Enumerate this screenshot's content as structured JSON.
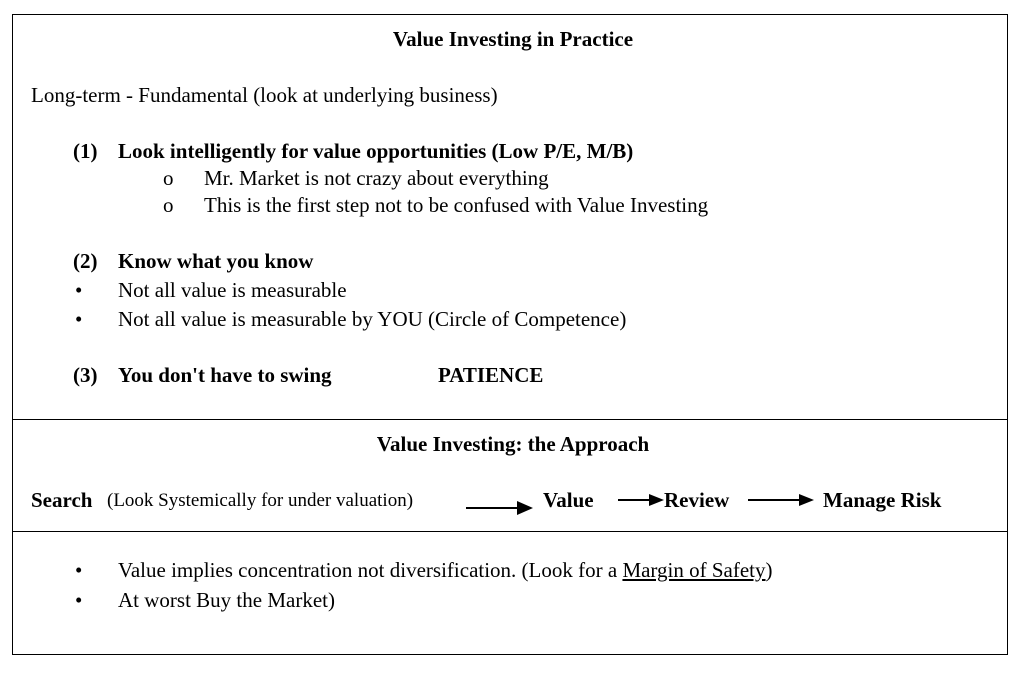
{
  "section1": {
    "title": "Value Investing in Practice",
    "intro": "Long-term - Fundamental (look at underlying business)",
    "point1": {
      "number": "(1)",
      "heading": "Look intelligently for value opportunities (Low P/E, M/B)",
      "bullet_marker": "o",
      "bullets": [
        "Mr. Market is not crazy about everything",
        "This is the first step not to be confused with Value Investing"
      ]
    },
    "point2": {
      "number": "(2)",
      "heading": "Know what you know",
      "bullet_marker": "•",
      "bullets": [
        "Not all value is measurable",
        "Not all value is measurable by YOU  (Circle of Competence)"
      ]
    },
    "point3": {
      "number": "(3)",
      "heading": "You don't have to swing",
      "emphasis": "PATIENCE"
    }
  },
  "section2": {
    "title": "Value Investing: the Approach",
    "flow": {
      "search": "Search",
      "search_note": "(Look Systemically for under valuation)",
      "value": "Value",
      "review": "Review",
      "manage_risk": "Manage Risk"
    }
  },
  "section3": {
    "bullet_marker": "•",
    "bullet1_text": "Value implies concentration not diversification. (Look for a ",
    "bullet1_link": "Margin of Safety",
    "bullet1_end": ")",
    "bullet2": "At worst Buy the Market)"
  }
}
